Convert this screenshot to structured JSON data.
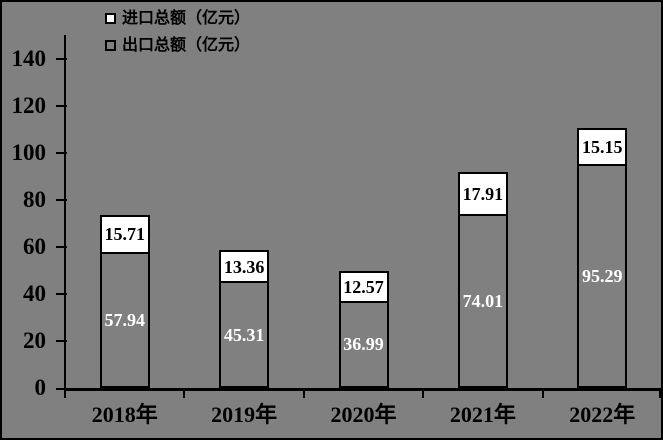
{
  "chart_data": {
    "type": "bar",
    "stacked": true,
    "title": "",
    "xlabel": "",
    "ylabel": "",
    "categories": [
      "2018年",
      "2019年",
      "2020年",
      "2021年",
      "2022年"
    ],
    "series": [
      {
        "name": "出口总额（亿元）",
        "values": [
          57.94,
          45.31,
          36.99,
          74.01,
          95.29
        ],
        "fill": "#808080",
        "label_color": "#ffffff"
      },
      {
        "name": "进口总额（亿元）",
        "values": [
          15.71,
          13.36,
          12.57,
          17.91,
          15.15
        ],
        "fill": "#ffffff",
        "label_color": "#000000"
      }
    ],
    "legend": [
      {
        "label": "进口总额（亿元）",
        "swatch": "#ffffff"
      },
      {
        "label": "出口总额（亿元）",
        "swatch": "#808080"
      }
    ],
    "yticks": [
      0,
      20,
      40,
      60,
      80,
      100,
      120,
      140
    ],
    "ylim": [
      0,
      150
    ],
    "grid": false,
    "legend_position": "top-left",
    "background_color": "#808080",
    "bar_border_color": "#000000"
  }
}
